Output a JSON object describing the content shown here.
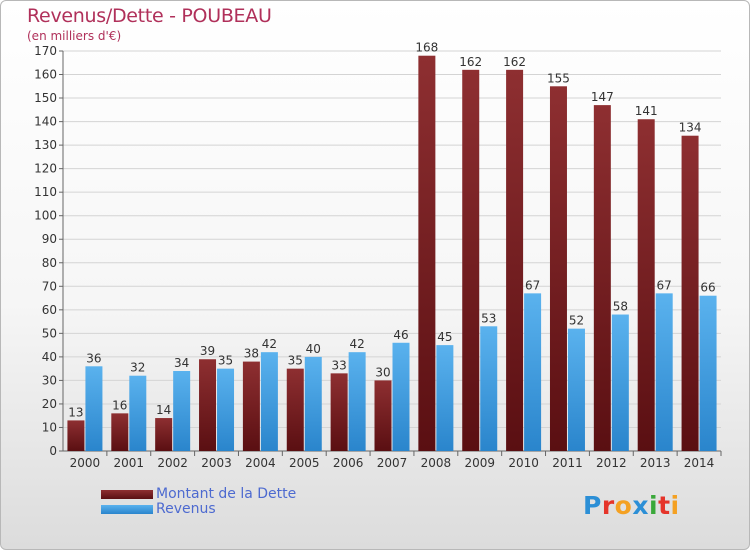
{
  "header": {
    "title": "Revenus/Dette - POUBEAU",
    "subtitle": "(en milliers d'€)"
  },
  "legend": {
    "items": [
      {
        "label": "Montant de la Dette",
        "color": "#7a1f22"
      },
      {
        "label": "Revenus",
        "color": "#3a9be0"
      }
    ]
  },
  "logo": {
    "text": "Proxiti",
    "letters": [
      "P",
      "r",
      "o",
      "x",
      "i",
      "t",
      "i"
    ],
    "colors": [
      "#2c8fd6",
      "#e5342a",
      "#f4a122",
      "#2c8fd6",
      "#3aa83a",
      "#e5342a",
      "#f4a122"
    ]
  },
  "chart_data": {
    "type": "bar",
    "categories": [
      "2000",
      "2001",
      "2002",
      "2003",
      "2004",
      "2005",
      "2006",
      "2007",
      "2008",
      "2009",
      "2010",
      "2011",
      "2012",
      "2013",
      "2014"
    ],
    "series": [
      {
        "name": "Montant de la Dette",
        "color": "#7a1f22",
        "values": [
          13,
          16,
          14,
          39,
          38,
          35,
          33,
          30,
          168,
          162,
          162,
          155,
          147,
          141,
          134
        ]
      },
      {
        "name": "Revenus",
        "color": "#3a9be0",
        "values": [
          36,
          32,
          34,
          35,
          42,
          40,
          42,
          46,
          45,
          53,
          67,
          52,
          58,
          67,
          66
        ]
      }
    ],
    "ylim": [
      0,
      170
    ],
    "yticks": [
      0,
      10,
      20,
      30,
      40,
      50,
      60,
      70,
      80,
      90,
      100,
      110,
      120,
      130,
      140,
      150,
      160,
      170
    ],
    "grid": true,
    "legend_position": "bottom-left"
  }
}
